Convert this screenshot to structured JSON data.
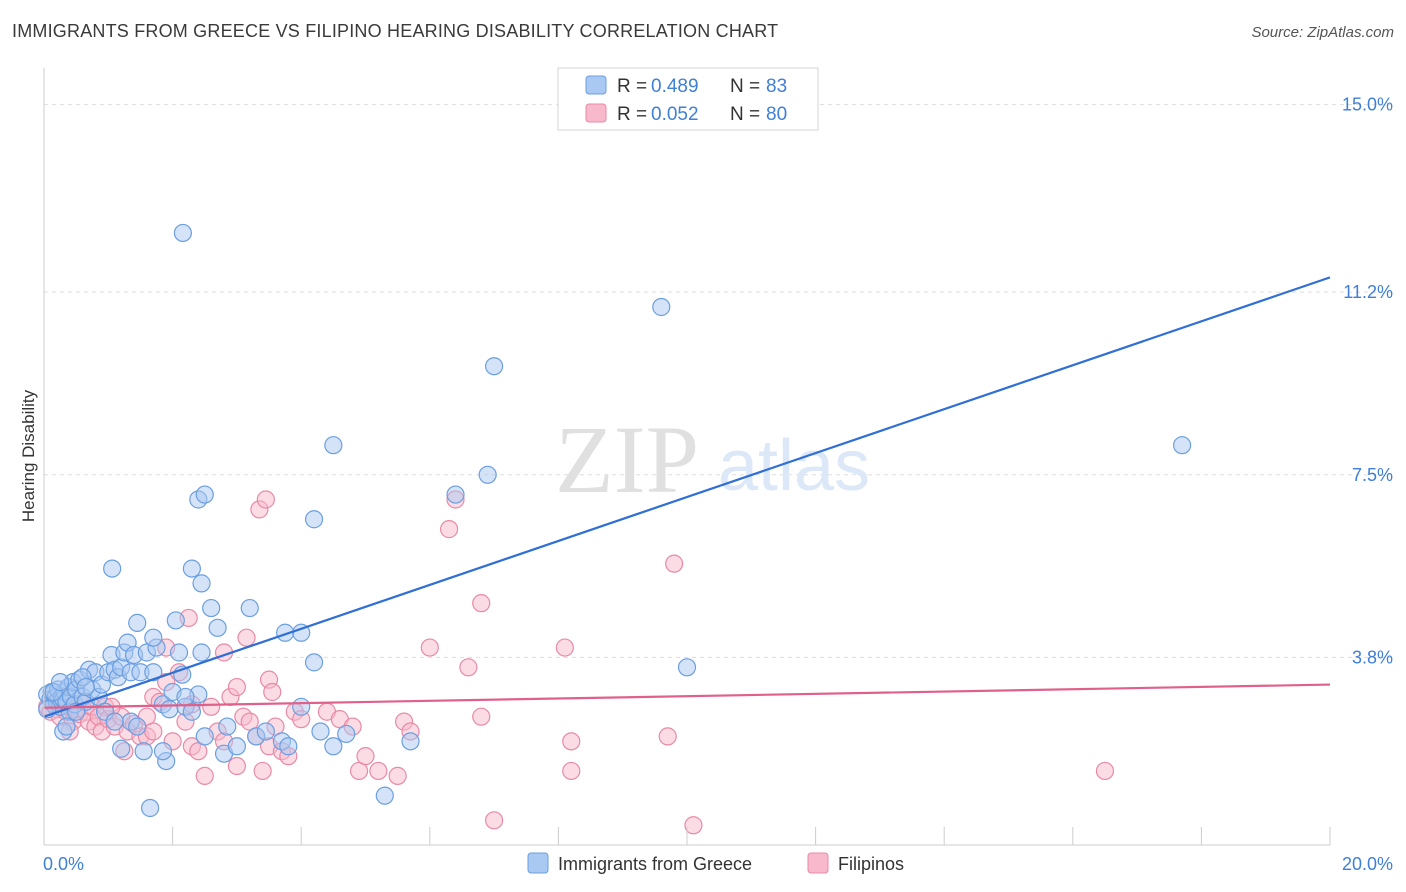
{
  "title": "IMMIGRANTS FROM GREECE VS FILIPINO HEARING DISABILITY CORRELATION CHART",
  "source": "Source: ZipAtlas.com",
  "watermark": {
    "zip": "ZIP",
    "atlas": "atlas"
  },
  "colors": {
    "greece_fill": "#a9c8f2",
    "greece_stroke": "#6b9fe0",
    "greece_line": "#2f6fd6",
    "filipino_fill": "#f7b9cb",
    "filipino_stroke": "#e88aa6",
    "filipino_line": "#e0608a",
    "tick": "#3f7fd6",
    "grid": "#dddddd"
  },
  "chart_data": {
    "type": "scatter",
    "title": "IMMIGRANTS FROM GREECE VS FILIPINO HEARING DISABILITY CORRELATION CHART",
    "xlabel": "",
    "ylabel": "Hearing Disability",
    "xlim": [
      0,
      20
    ],
    "ylim": [
      0,
      15.6
    ],
    "x_tick_labels": [
      "0.0%",
      "20.0%"
    ],
    "y_ticks": [
      3.8,
      7.5,
      11.2,
      15.0
    ],
    "y_tick_labels": [
      "3.8%",
      "7.5%",
      "11.2%",
      "15.0%"
    ],
    "legend": [
      {
        "name": "Immigrants from Greece",
        "r_label": "R =",
        "r": "0.489",
        "n_label": "N =",
        "n": "83"
      },
      {
        "name": "Filipinos",
        "r_label": "R =",
        "r": "0.052",
        "n_label": "N =",
        "n": "80"
      }
    ],
    "series": [
      {
        "name": "Immigrants from Greece",
        "trend": {
          "x": [
            0.0,
            20.0
          ],
          "y": [
            2.6,
            11.5
          ]
        },
        "points": [
          [
            0.05,
            3.05
          ],
          [
            0.1,
            2.95
          ],
          [
            0.12,
            3.1
          ],
          [
            0.15,
            2.85
          ],
          [
            0.18,
            3.0
          ],
          [
            0.2,
            2.9
          ],
          [
            0.22,
            3.15
          ],
          [
            0.25,
            2.8
          ],
          [
            0.28,
            3.0
          ],
          [
            0.3,
            2.95
          ],
          [
            0.32,
            3.1
          ],
          [
            0.35,
            2.9
          ],
          [
            0.38,
            3.2
          ],
          [
            0.4,
            2.7
          ],
          [
            0.42,
            3.0
          ],
          [
            0.45,
            3.3
          ],
          [
            0.48,
            2.85
          ],
          [
            0.5,
            3.15
          ],
          [
            0.55,
            3.35
          ],
          [
            0.6,
            3.0
          ],
          [
            0.65,
            2.9
          ],
          [
            0.7,
            3.55
          ],
          [
            0.75,
            3.15
          ],
          [
            0.8,
            3.5
          ],
          [
            0.85,
            3.0
          ],
          [
            0.9,
            3.25
          ],
          [
            0.95,
            2.7
          ],
          [
            1.0,
            3.5
          ],
          [
            1.05,
            3.85
          ],
          [
            1.1,
            3.55
          ],
          [
            1.15,
            3.4
          ],
          [
            1.2,
            3.6
          ],
          [
            1.25,
            3.9
          ],
          [
            1.3,
            4.1
          ],
          [
            1.35,
            3.5
          ],
          [
            1.4,
            3.85
          ],
          [
            1.45,
            4.5
          ],
          [
            1.5,
            3.5
          ],
          [
            1.6,
            3.9
          ],
          [
            1.7,
            3.5
          ],
          [
            1.75,
            4.0
          ],
          [
            1.85,
            2.85
          ],
          [
            1.95,
            2.75
          ],
          [
            2.05,
            4.55
          ],
          [
            2.15,
            3.45
          ],
          [
            2.2,
            2.8
          ],
          [
            2.3,
            2.7
          ],
          [
            2.4,
            3.05
          ],
          [
            2.5,
            2.2
          ],
          [
            2.6,
            4.8
          ],
          [
            2.1,
            3.9
          ],
          [
            1.2,
            1.95
          ],
          [
            1.35,
            2.5
          ],
          [
            1.55,
            1.9
          ],
          [
            1.7,
            4.2
          ],
          [
            1.9,
            1.7
          ],
          [
            2.3,
            5.6
          ],
          [
            2.45,
            5.3
          ],
          [
            0.5,
            2.7
          ],
          [
            0.3,
            2.3
          ],
          [
            0.6,
            3.4
          ],
          [
            0.65,
            3.2
          ],
          [
            1.1,
            2.5
          ],
          [
            1.45,
            2.4
          ],
          [
            1.65,
            0.75
          ],
          [
            1.85,
            1.9
          ],
          [
            2.0,
            3.1
          ],
          [
            2.2,
            3.0
          ],
          [
            2.45,
            3.9
          ],
          [
            2.7,
            4.4
          ],
          [
            2.8,
            1.85
          ],
          [
            2.85,
            2.4
          ],
          [
            3.0,
            2.0
          ],
          [
            3.2,
            4.8
          ],
          [
            3.3,
            2.2
          ],
          [
            3.45,
            2.3
          ],
          [
            3.7,
            2.1
          ],
          [
            3.8,
            2.0
          ],
          [
            4.0,
            4.3
          ],
          [
            4.2,
            3.7
          ],
          [
            4.3,
            2.3
          ],
          [
            4.5,
            2.0
          ],
          [
            4.7,
            2.25
          ]
        ],
        "outliers": [
          [
            2.16,
            12.4
          ],
          [
            1.06,
            5.6
          ],
          [
            2.4,
            7.0
          ],
          [
            2.5,
            7.1
          ],
          [
            3.75,
            4.3
          ],
          [
            4.0,
            2.8
          ],
          [
            4.2,
            6.6
          ],
          [
            4.5,
            8.1
          ],
          [
            5.3,
            1.0
          ],
          [
            5.7,
            2.1
          ],
          [
            6.4,
            7.1
          ],
          [
            6.9,
            7.5
          ],
          [
            7.0,
            9.7
          ],
          [
            10.0,
            3.6
          ],
          [
            9.6,
            10.9
          ],
          [
            17.7,
            8.1
          ],
          [
            0.35,
            2.4
          ],
          [
            0.15,
            3.1
          ],
          [
            0.25,
            3.3
          ],
          [
            0.05,
            2.75
          ]
        ]
      },
      {
        "name": "Filipinos",
        "trend": {
          "x": [
            0.0,
            20.0
          ],
          "y": [
            2.78,
            3.25
          ]
        },
        "points": [
          [
            0.05,
            2.8
          ],
          [
            0.1,
            2.7
          ],
          [
            0.15,
            2.9
          ],
          [
            0.2,
            2.75
          ],
          [
            0.25,
            2.6
          ],
          [
            0.3,
            2.85
          ],
          [
            0.35,
            2.7
          ],
          [
            0.4,
            2.8
          ],
          [
            0.45,
            2.5
          ],
          [
            0.5,
            2.75
          ],
          [
            0.55,
            2.65
          ],
          [
            0.6,
            2.9
          ],
          [
            0.65,
            2.7
          ],
          [
            0.7,
            2.5
          ],
          [
            0.75,
            2.8
          ],
          [
            0.8,
            2.4
          ],
          [
            0.85,
            2.6
          ],
          [
            0.9,
            2.3
          ],
          [
            0.95,
            2.8
          ],
          [
            1.0,
            2.55
          ],
          [
            1.1,
            2.4
          ],
          [
            1.2,
            2.6
          ],
          [
            1.3,
            2.3
          ],
          [
            1.4,
            2.45
          ],
          [
            1.5,
            2.2
          ],
          [
            1.6,
            2.6
          ],
          [
            1.7,
            3.0
          ],
          [
            1.8,
            2.9
          ],
          [
            1.9,
            3.3
          ],
          [
            2.0,
            2.1
          ],
          [
            2.1,
            3.5
          ],
          [
            2.2,
            2.5
          ],
          [
            2.3,
            2.0
          ],
          [
            2.4,
            1.9
          ],
          [
            2.5,
            1.4
          ],
          [
            2.6,
            2.8
          ],
          [
            2.7,
            2.3
          ],
          [
            2.8,
            2.1
          ],
          [
            2.9,
            3.0
          ],
          [
            3.0,
            3.2
          ],
          [
            3.1,
            2.6
          ],
          [
            3.2,
            2.5
          ],
          [
            3.3,
            2.2
          ],
          [
            3.4,
            1.5
          ],
          [
            3.5,
            2.0
          ],
          [
            3.6,
            2.4
          ],
          [
            3.7,
            1.9
          ],
          [
            3.8,
            1.8
          ],
          [
            3.9,
            2.7
          ],
          [
            4.0,
            2.55
          ],
          [
            1.25,
            1.9
          ],
          [
            1.6,
            2.2
          ],
          [
            1.9,
            4.0
          ],
          [
            2.25,
            4.6
          ],
          [
            2.8,
            3.9
          ],
          [
            3.15,
            4.2
          ],
          [
            3.35,
            6.8
          ],
          [
            3.45,
            7.0
          ],
          [
            3.5,
            3.35
          ],
          [
            3.55,
            3.1
          ],
          [
            4.4,
            2.7
          ],
          [
            4.6,
            2.55
          ],
          [
            4.8,
            2.4
          ],
          [
            4.9,
            1.5
          ],
          [
            5.0,
            1.8
          ],
          [
            5.2,
            1.5
          ],
          [
            5.5,
            1.4
          ],
          [
            5.6,
            2.5
          ],
          [
            5.7,
            2.3
          ],
          [
            6.0,
            4.0
          ],
          [
            6.3,
            6.4
          ],
          [
            6.4,
            7.0
          ],
          [
            6.6,
            3.6
          ],
          [
            6.8,
            4.9
          ],
          [
            6.8,
            2.6
          ],
          [
            7.0,
            0.5
          ],
          [
            8.1,
            4.0
          ],
          [
            8.2,
            1.5
          ],
          [
            9.7,
            2.2
          ],
          [
            10.1,
            0.4
          ]
        ],
        "outliers": [
          [
            8.2,
            2.1
          ],
          [
            9.8,
            5.7
          ],
          [
            16.5,
            1.5
          ],
          [
            3.0,
            1.6
          ],
          [
            1.7,
            2.3
          ],
          [
            2.3,
            2.85
          ],
          [
            1.05,
            2.8
          ],
          [
            0.4,
            2.3
          ]
        ]
      }
    ]
  }
}
